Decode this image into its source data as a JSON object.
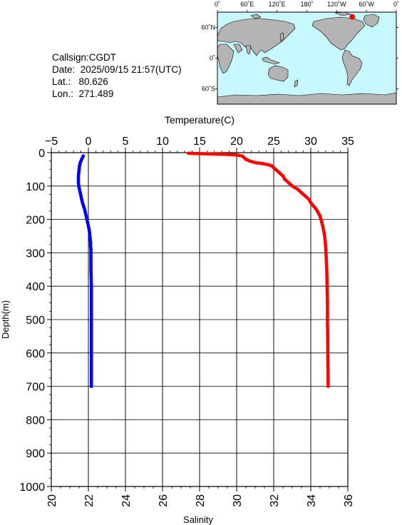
{
  "station": {
    "callsign": "Callsign:CGDT",
    "date": "Date:  2025/09/15 21:57(UTC)",
    "lat": "Lat.:   80.626",
    "lon": "Lon.:  271.489"
  },
  "map": {
    "lon_ticks": [
      "0˚",
      "60˚E",
      "120˚E",
      "180˚",
      "120˚W",
      "60˚W",
      "0˚"
    ],
    "lat_ticks": [
      "60˚N",
      "0˚",
      "60˚S"
    ],
    "ocean_color": "#c8f8ff",
    "land_color": "#b4b4b4",
    "marker_color": "#ff0000",
    "marker": {
      "lat": 80.626,
      "lon": 271.489
    }
  },
  "chart_data": {
    "type": "line",
    "temperature_axis": {
      "label": "Temperature(C)",
      "range": [
        -5,
        35
      ],
      "ticks": [
        -5,
        0,
        5,
        10,
        15,
        20,
        25,
        30,
        35
      ]
    },
    "salinity_axis": {
      "label": "Salinity",
      "range": [
        20,
        36
      ],
      "ticks": [
        20,
        22,
        24,
        26,
        28,
        30,
        32,
        34,
        36
      ]
    },
    "depth_axis": {
      "label": "Depth(m)",
      "range": [
        0,
        1000
      ],
      "ticks": [
        0,
        100,
        200,
        300,
        400,
        500,
        600,
        700,
        800,
        900,
        1000
      ]
    },
    "grid": true,
    "series": [
      {
        "variable": "temperature",
        "color": "#0000ff",
        "depth": [
          10,
          15,
          20,
          30,
          40,
          50,
          60,
          70,
          80,
          90,
          100,
          110,
          120,
          130,
          140,
          150,
          160,
          170,
          180,
          190,
          200,
          210,
          220,
          230,
          240,
          250,
          260,
          270,
          280,
          290,
          300,
          350,
          400,
          450,
          500,
          550,
          600,
          650,
          700
        ],
        "values": [
          -0.7,
          -0.8,
          -0.9,
          -1.1,
          -1.2,
          -1.25,
          -1.3,
          -1.35,
          -1.35,
          -1.35,
          -1.3,
          -1.2,
          -1.1,
          -1.0,
          -0.9,
          -0.8,
          -0.65,
          -0.5,
          -0.4,
          -0.3,
          -0.2,
          -0.1,
          0.0,
          0.1,
          0.15,
          0.2,
          0.25,
          0.3,
          0.3,
          0.35,
          0.35,
          0.35,
          0.4,
          0.4,
          0.4,
          0.4,
          0.4,
          0.4,
          0.4
        ]
      },
      {
        "variable": "salinity",
        "color": "#ff0000",
        "depth": [
          2,
          3,
          4,
          5,
          6,
          7,
          10,
          15,
          20,
          25,
          30,
          33,
          36,
          40,
          45,
          50,
          60,
          70,
          80,
          90,
          100,
          110,
          120,
          130,
          140,
          150,
          160,
          170,
          180,
          190,
          200,
          220,
          240,
          260,
          280,
          300,
          320,
          350,
          400,
          450,
          500,
          550,
          600,
          650,
          700
        ],
        "values": [
          27.4,
          28.0,
          28.6,
          29.3,
          29.7,
          30.0,
          30.3,
          30.4,
          30.5,
          30.7,
          31.0,
          31.4,
          31.7,
          31.9,
          32.0,
          32.1,
          32.3,
          32.5,
          32.6,
          32.8,
          33.0,
          33.3,
          33.5,
          33.7,
          33.9,
          34.0,
          34.15,
          34.3,
          34.4,
          34.5,
          34.55,
          34.65,
          34.72,
          34.77,
          34.8,
          34.82,
          34.84,
          34.86,
          34.88,
          34.9,
          34.9,
          34.91,
          34.92,
          34.93,
          34.94
        ]
      }
    ]
  }
}
